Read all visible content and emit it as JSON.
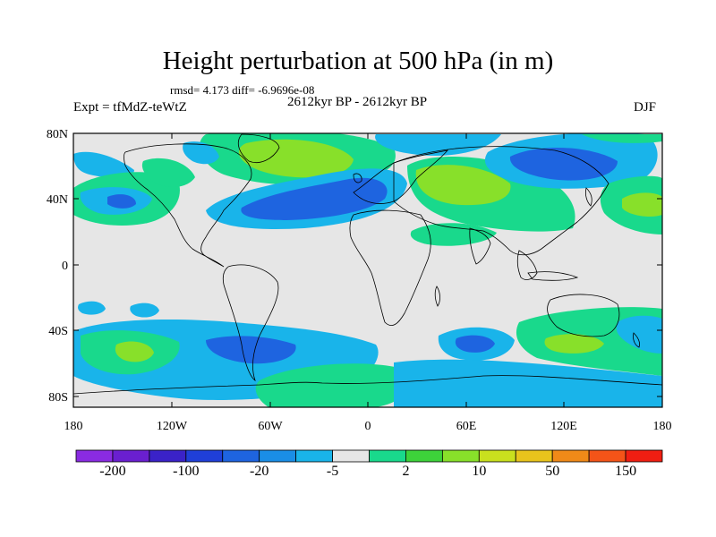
{
  "title": "Height perturbation at 500 hPa (in m)",
  "stats": "rmsd= 4.173  diff= -6.9696e-08",
  "expt": "Expt = tfMdZ-teWtZ",
  "period": "2612kyr BP - 2612kyr BP",
  "season": "DJF",
  "y_axis_labels": [
    "80N",
    "40N",
    "0",
    "40S",
    "80S"
  ],
  "x_axis_labels": [
    "180",
    "120W",
    "60W",
    "0",
    "60E",
    "120E",
    "180"
  ],
  "colorbar": {
    "colors": [
      "#8a2be2",
      "#6a1fd0",
      "#3a22c8",
      "#1f3fd8",
      "#1e64e0",
      "#1a8ee6",
      "#19b4ea",
      "#e6e6e6",
      "#19d98c",
      "#3dd23a",
      "#88e02a",
      "#c9e01e",
      "#e8c41c",
      "#f08a18",
      "#f45418",
      "#f01e12"
    ],
    "labels": [
      "-200",
      "-100",
      "-20",
      "-5",
      "2",
      "10",
      "50",
      "150"
    ]
  },
  "map_colors": {
    "background": "#e6e6e6",
    "light_blue": "#19b4ea",
    "blue": "#1e64e0",
    "green": "#19d98c",
    "lime": "#88e02a",
    "coast": "#000000"
  }
}
